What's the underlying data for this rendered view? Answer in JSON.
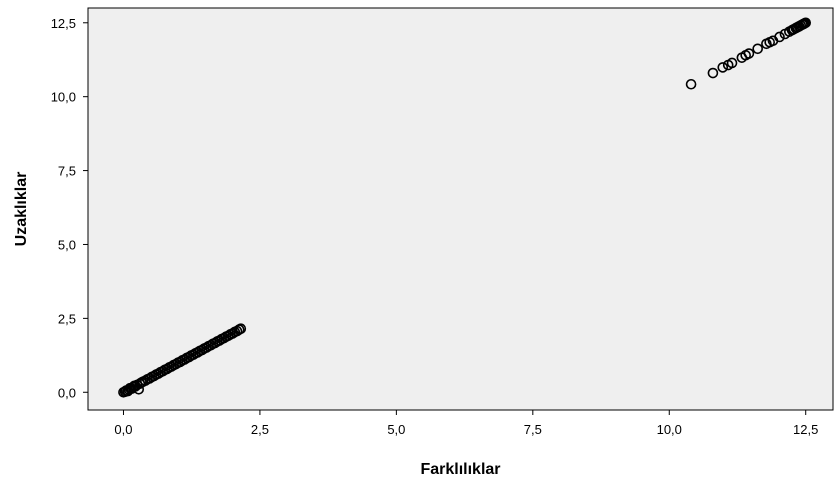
{
  "chart_data": {
    "type": "scatter",
    "xlabel": "Farklılıklar",
    "ylabel": "Uzaklıklar",
    "xlim": [
      -0.65,
      13.0
    ],
    "ylim": [
      -0.6,
      13.0
    ],
    "x_ticks": [
      0.0,
      2.5,
      5.0,
      7.5,
      10.0,
      12.5
    ],
    "x_tick_labels": [
      "0,0",
      "2,5",
      "5,0",
      "7,5",
      "10,0",
      "12,5"
    ],
    "y_ticks": [
      0.0,
      2.5,
      5.0,
      7.5,
      10.0,
      12.5
    ],
    "y_tick_labels": [
      "0,0",
      "2,5",
      "5,0",
      "7,5",
      "10,0",
      "12,5"
    ],
    "grid": false,
    "marker": "open-circle",
    "plot_background": "#efefef",
    "marker_color": "#000000",
    "points": [
      [
        0.0,
        0.0
      ],
      [
        0.03,
        0.02
      ],
      [
        0.05,
        0.06
      ],
      [
        0.08,
        0.04
      ],
      [
        0.1,
        0.09
      ],
      [
        0.12,
        0.14
      ],
      [
        0.15,
        0.12
      ],
      [
        0.18,
        0.17
      ],
      [
        0.2,
        0.22
      ],
      [
        0.22,
        0.2
      ],
      [
        0.25,
        0.25
      ],
      [
        0.28,
        0.1
      ],
      [
        0.3,
        0.29
      ],
      [
        0.33,
        0.33
      ],
      [
        0.36,
        0.36
      ],
      [
        0.4,
        0.39
      ],
      [
        0.44,
        0.44
      ],
      [
        0.48,
        0.47
      ],
      [
        0.52,
        0.52
      ],
      [
        0.56,
        0.55
      ],
      [
        0.6,
        0.6
      ],
      [
        0.64,
        0.63
      ],
      [
        0.68,
        0.68
      ],
      [
        0.72,
        0.71
      ],
      [
        0.76,
        0.76
      ],
      [
        0.8,
        0.79
      ],
      [
        0.84,
        0.84
      ],
      [
        0.88,
        0.87
      ],
      [
        0.92,
        0.92
      ],
      [
        0.96,
        0.95
      ],
      [
        1.0,
        1.0
      ],
      [
        1.04,
        1.03
      ],
      [
        1.08,
        1.08
      ],
      [
        1.12,
        1.11
      ],
      [
        1.16,
        1.16
      ],
      [
        1.2,
        1.19
      ],
      [
        1.24,
        1.24
      ],
      [
        1.28,
        1.27
      ],
      [
        1.32,
        1.32
      ],
      [
        1.36,
        1.35
      ],
      [
        1.4,
        1.4
      ],
      [
        1.44,
        1.43
      ],
      [
        1.48,
        1.48
      ],
      [
        1.52,
        1.51
      ],
      [
        1.56,
        1.56
      ],
      [
        1.6,
        1.59
      ],
      [
        1.64,
        1.64
      ],
      [
        1.68,
        1.67
      ],
      [
        1.72,
        1.72
      ],
      [
        1.76,
        1.75
      ],
      [
        1.8,
        1.8
      ],
      [
        1.84,
        1.83
      ],
      [
        1.88,
        1.88
      ],
      [
        1.92,
        1.91
      ],
      [
        1.96,
        1.96
      ],
      [
        2.0,
        1.99
      ],
      [
        2.04,
        2.04
      ],
      [
        2.08,
        2.07
      ],
      [
        2.12,
        2.12
      ],
      [
        2.15,
        2.15
      ],
      [
        10.4,
        10.42
      ],
      [
        10.8,
        10.8
      ],
      [
        10.98,
        10.99
      ],
      [
        11.08,
        11.07
      ],
      [
        11.15,
        11.14
      ],
      [
        11.33,
        11.32
      ],
      [
        11.4,
        11.4
      ],
      [
        11.46,
        11.46
      ],
      [
        11.62,
        11.62
      ],
      [
        11.78,
        11.79
      ],
      [
        11.84,
        11.84
      ],
      [
        11.9,
        11.89
      ],
      [
        12.02,
        12.02
      ],
      [
        12.12,
        12.12
      ],
      [
        12.2,
        12.2
      ],
      [
        12.25,
        12.25
      ],
      [
        12.28,
        12.28
      ],
      [
        12.32,
        12.32
      ],
      [
        12.35,
        12.35
      ],
      [
        12.38,
        12.38
      ],
      [
        12.41,
        12.41
      ],
      [
        12.44,
        12.44
      ],
      [
        12.46,
        12.46
      ],
      [
        12.48,
        12.48
      ],
      [
        12.5,
        12.5
      ]
    ]
  }
}
